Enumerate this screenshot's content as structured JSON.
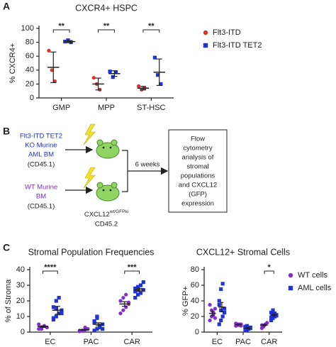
{
  "panel_labels": [
    "A",
    "B",
    "C"
  ],
  "chart_data": [
    {
      "type": "dot",
      "title": "CXCR4+ HSPC",
      "y_label": "% CXCR4+",
      "categories": [
        "GMP",
        "MPP",
        "ST-HSC"
      ],
      "ylim": [
        0,
        100
      ],
      "yticks": [
        0,
        20,
        40,
        60,
        80,
        100
      ],
      "legend": "right",
      "significance": [
        "**",
        "**",
        "**"
      ],
      "series": [
        {
          "name": "Flt3-ITD",
          "color": "#e0312f",
          "marker": "circle",
          "values": [
            [
              68,
              40,
              24
            ],
            [
              29,
              20,
              12
            ],
            [
              17,
              12,
              14
            ]
          ],
          "means": [
            44,
            20,
            14
          ],
          "errors": [
            22,
            8.5,
            2.5
          ]
        },
        {
          "name": "Flt3-ITD TET2",
          "color": "#2233d6",
          "marker": "square",
          "values": [
            [
              81,
              83,
              80
            ],
            [
              38,
              30,
              37
            ],
            [
              58,
              33,
              20
            ]
          ],
          "means": [
            81,
            35,
            37
          ],
          "errors": [
            1.5,
            4,
            19
          ]
        }
      ]
    },
    {
      "type": "dot",
      "title": "Stromal Population Frequencies",
      "y_label": "% of Stroma",
      "categories": [
        "EC",
        "PAC",
        "CAR"
      ],
      "ylim": [
        0,
        40
      ],
      "yticks": [
        0,
        10,
        20,
        30,
        40
      ],
      "significance": [
        "****",
        null,
        "***"
      ],
      "series": [
        {
          "color": "#7f2fd0",
          "marker": "circle",
          "values": [
            [
              2,
              3,
              4,
              3,
              5,
              2,
              4,
              3
            ],
            [
              0.5,
              1,
              1.5,
              2,
              1,
              0.8,
              3,
              2
            ],
            [
              12,
              14,
              16,
              18,
              20,
              22,
              24,
              19
            ]
          ],
          "means": [
            3.5,
            1.5,
            18
          ],
          "errors": [
            0.5,
            0.3,
            1.5
          ]
        },
        {
          "color": "#2233d6",
          "marker": "square",
          "values": [
            [
              8,
              10,
              12,
              14,
              16,
              20,
              22,
              12,
              9,
              15
            ],
            [
              1,
              2,
              3,
              5,
              7,
              9,
              4,
              2,
              6,
              10
            ],
            [
              22,
              24,
              25,
              27,
              28,
              29,
              30,
              32,
              26,
              27
            ]
          ],
          "means": [
            14,
            5,
            27
          ],
          "errors": [
            2.5,
            1,
            1
          ]
        }
      ]
    },
    {
      "type": "dot",
      "title": "CXCL12+ Stromal Cells",
      "y_label": "% GFP+",
      "categories": [
        "EC",
        "PAC",
        "CAR"
      ],
      "ylim": [
        0,
        80
      ],
      "yticks": [
        0,
        20,
        40,
        60,
        80
      ],
      "legend": "right",
      "significance": [
        null,
        null,
        "*"
      ],
      "series": [
        {
          "name": "WT cells",
          "color": "#7f2fd0",
          "marker": "circle",
          "values": [
            [
              15,
              20,
              25,
              30,
              35,
              28,
              22,
              18
            ],
            [
              8,
              10,
              9,
              10,
              11,
              9,
              10,
              8
            ],
            [
              5,
              8,
              10,
              12,
              9,
              7
            ]
          ],
          "means": [
            24,
            9.5,
            9
          ],
          "errors": [
            3,
            0.5,
            1
          ]
        },
        {
          "name": "AML cells",
          "color": "#2233d6",
          "marker": "square",
          "values": [
            [
              10,
              15,
              20,
              30,
              40,
              55,
              62,
              25,
              35,
              28
            ],
            [
              2,
              3,
              5,
              6,
              7,
              8,
              4,
              5,
              6,
              3
            ],
            [
              15,
              18,
              20,
              22,
              25,
              28,
              24,
              21,
              19,
              23
            ]
          ],
          "means": [
            32,
            5,
            22
          ],
          "errors": [
            6,
            1,
            1.5
          ]
        }
      ]
    }
  ],
  "diagram": {
    "donors": [
      {
        "lines": [
          "Flt3-ITD TET2",
          "KO Murine",
          "AML BM"
        ],
        "marker": "(CD45.1)"
      },
      {
        "lines": [
          "WT Murine",
          "BM"
        ],
        "marker": "(CD45.1)"
      }
    ],
    "recipient": {
      "name": "CXCL12",
      "superscript": "wt/GFPki",
      "marker": "CD45.2"
    },
    "interval": "6 weeks",
    "readout": [
      "Flow",
      "cytometry",
      "analysis of",
      "stromal",
      "populations",
      "and CXCL12",
      "(GFP)",
      "expression"
    ]
  }
}
